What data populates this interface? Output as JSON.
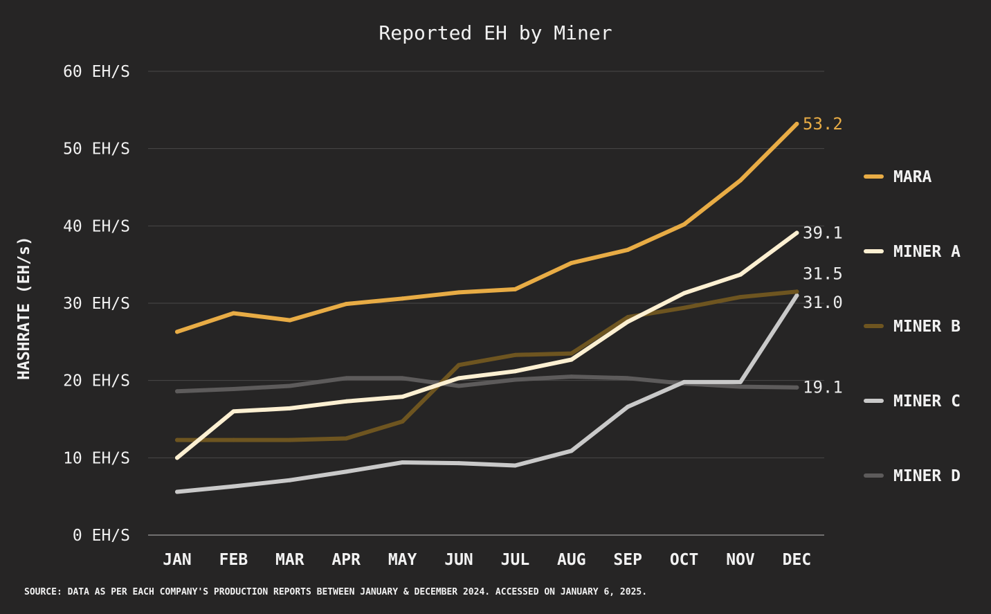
{
  "chart_data": {
    "type": "line",
    "title": "Reported EH by Miner",
    "ylabel": "HASHRATE (EH/s)",
    "xlabel": "",
    "ylim": [
      0,
      60
    ],
    "y_ticks": [
      {
        "value": 0,
        "label": "0 EH/S"
      },
      {
        "value": 10,
        "label": "10 EH/S"
      },
      {
        "value": 20,
        "label": "20 EH/S"
      },
      {
        "value": 30,
        "label": "30 EH/S"
      },
      {
        "value": 40,
        "label": "40 EH/S"
      },
      {
        "value": 50,
        "label": "50 EH/S"
      },
      {
        "value": 60,
        "label": "60 EH/S"
      }
    ],
    "grid": true,
    "legend_position": "right",
    "categories": [
      "JAN",
      "FEB",
      "MAR",
      "APR",
      "MAY",
      "JUN",
      "JUL",
      "AUG",
      "SEP",
      "OCT",
      "NOV",
      "DEC"
    ],
    "series": [
      {
        "name": "MARA",
        "color": "#e8ac45",
        "values": [
          26.3,
          28.7,
          27.8,
          29.9,
          30.6,
          31.4,
          31.8,
          35.2,
          36.9,
          40.2,
          45.9,
          53.2
        ],
        "end_label": "53.2",
        "end_label_color": "#e8ac45"
      },
      {
        "name": "MINER A",
        "color": "#fdf0d2",
        "values": [
          10.0,
          16.0,
          16.4,
          17.3,
          17.9,
          20.3,
          21.2,
          22.7,
          27.6,
          31.3,
          33.7,
          39.1
        ],
        "end_label": "39.1",
        "end_label_color": "#ececec"
      },
      {
        "name": "MINER B",
        "color": "#6e5520",
        "values": [
          12.3,
          12.3,
          12.3,
          12.5,
          14.7,
          22.0,
          23.3,
          23.5,
          28.2,
          29.4,
          30.8,
          31.5
        ],
        "end_label": "31.5",
        "end_label_color": "#ececec"
      },
      {
        "name": "MINER C",
        "color": "#c9c9c9",
        "values": [
          5.6,
          6.3,
          7.1,
          8.2,
          9.4,
          9.3,
          9.0,
          10.9,
          16.6,
          19.8,
          19.8,
          31.0
        ],
        "end_label": "31.0",
        "end_label_color": "#ececec"
      },
      {
        "name": "MINER D",
        "color": "#5d5b5b",
        "values": [
          18.6,
          18.9,
          19.3,
          20.3,
          20.3,
          19.3,
          20.1,
          20.5,
          20.3,
          19.6,
          19.2,
          19.1
        ],
        "end_label": "19.1",
        "end_label_color": "#ececec"
      }
    ],
    "source": "SOURCE: DATA AS PER EACH COMPANY'S PRODUCTION REPORTS BETWEEN JANUARY & DECEMBER 2024. ACCESSED ON JANUARY 6, 2025."
  }
}
